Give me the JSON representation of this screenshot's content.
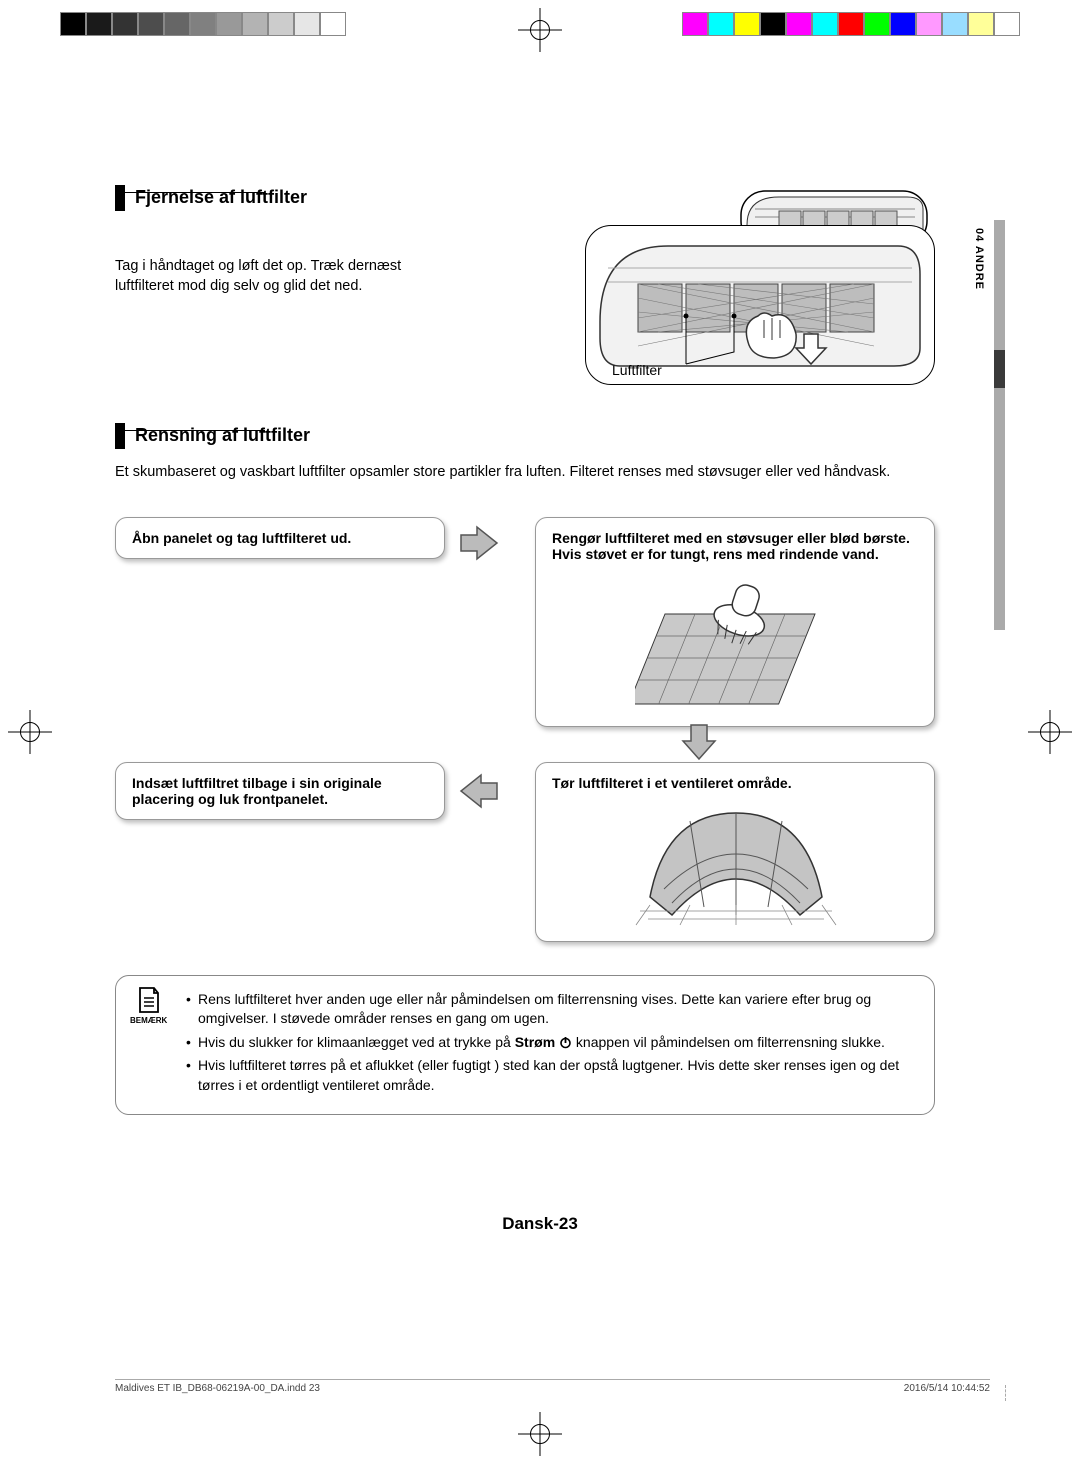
{
  "colorbar_left": [
    "#000000",
    "#1a1a1a",
    "#333333",
    "#4d4d4d",
    "#666666",
    "#808080",
    "#999999",
    "#b3b3b3",
    "#cccccc",
    "#e6e6e6",
    "#ffffff"
  ],
  "colorbar_right": [
    "#ff00ff",
    "#00ffff",
    "#ffff00",
    "#000000",
    "#ff00ff",
    "#00ffff",
    "#ff0000",
    "#00ff00",
    "#0000ff",
    "#ff99ff",
    "#99ddff",
    "#ffff99",
    "#ffffff"
  ],
  "sidetab": {
    "label": "04  ANDRE"
  },
  "section1": {
    "heading": "Fjernelse af luftfilter",
    "body": "Tag i håndtaget og løft det op. Træk dernæst luftfilteret mod dig selv og glid det ned.",
    "illus_label": "Luftfilter"
  },
  "section2": {
    "heading": "Rensning af luftfilter",
    "intro": "Et skumbaseret og vaskbart luftfilter opsamler store partikler fra luften. Filteret renses med støvsuger eller ved håndvask."
  },
  "steps": {
    "s1": "Åbn panelet og tag luftfilteret ud.",
    "s2": "Rengør luftfilteret med en støvsuger eller blød børste. Hvis støvet er for tungt, rens med rindende vand.",
    "s3": "Tør luftfilteret i et ventileret område.",
    "s4": "Indsæt luftfiltret tilbage i sin originale placering og luk frontpanelet."
  },
  "notes": {
    "icon_label": "BEMÆRK",
    "items": [
      {
        "pre": "Rens luftfilteret hver anden uge eller når påmindelsen om filterrensning vises. Dette kan variere efter brug og omgivelser. I støvede områder renses en gang om ugen."
      },
      {
        "pre": "Hvis du slukker for klimaanlægget ved at trykke på ",
        "bold": "Strøm",
        "post": " knappen vil påmindelsen om filterrensning slukke.",
        "power_icon": true
      },
      {
        "pre": "Hvis luftfilteret tørres på et aflukket (eller fugtigt ) sted kan der opstå lugtgener. Hvis dette sker renses igen og det tørres i et ordentligt ventileret område."
      }
    ]
  },
  "page_number": "Dansk-23",
  "print_footer": {
    "file": "Maldives ET IB_DB68-06219A-00_DA.indd   23",
    "ts": "2016/5/14   10:44:52"
  }
}
